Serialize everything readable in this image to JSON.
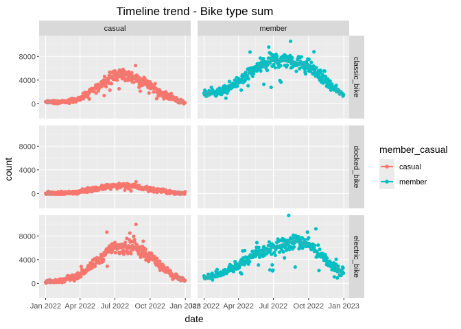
{
  "chart_data": {
    "type": "scatter",
    "title": "Timeline trend - Bike type sum",
    "xlabel": "date",
    "ylabel": "count",
    "facet_cols": [
      "casual",
      "member"
    ],
    "facet_rows": [
      "classic_bike",
      "docked_bike",
      "electric_bike"
    ],
    "x_ticks": [
      "Jan 2022",
      "Apr 2022",
      "Jul 2022",
      "Oct 2022",
      "Jan 2023"
    ],
    "x_range": [
      "2021-12-15",
      "2023-01-15"
    ],
    "y_ticks": [
      0,
      4000,
      8000
    ],
    "y_range": [
      -2500,
      11500
    ],
    "grid": true,
    "smooth_lines": true,
    "legend": {
      "title": "member_casual",
      "placement": "right",
      "entries": [
        {
          "label": "casual",
          "color": "#F8766D"
        },
        {
          "label": "member",
          "color": "#00BFC4"
        }
      ]
    },
    "panels": [
      {
        "col": "casual",
        "row": "classic_bike",
        "has_data": true,
        "trend": [
          {
            "x": "2022-01-01",
            "y": 300
          },
          {
            "x": "2022-02-15",
            "y": 250
          },
          {
            "x": "2022-04-01",
            "y": 800
          },
          {
            "x": "2022-05-15",
            "y": 2700
          },
          {
            "x": "2022-06-25",
            "y": 4700
          },
          {
            "x": "2022-07-20",
            "y": 5000
          },
          {
            "x": "2022-08-20",
            "y": 4400
          },
          {
            "x": "2022-09-25",
            "y": 3300
          },
          {
            "x": "2022-11-01",
            "y": 1900
          },
          {
            "x": "2022-12-01",
            "y": 800
          },
          {
            "x": "2022-12-31",
            "y": 100
          }
        ]
      },
      {
        "col": "member",
        "row": "classic_bike",
        "has_data": true,
        "trend": [
          {
            "x": "2022-01-01",
            "y": 1500
          },
          {
            "x": "2022-02-15",
            "y": 2100
          },
          {
            "x": "2022-04-01",
            "y": 3700
          },
          {
            "x": "2022-05-15",
            "y": 5900
          },
          {
            "x": "2022-06-25",
            "y": 7200
          },
          {
            "x": "2022-07-25",
            "y": 7300
          },
          {
            "x": "2022-08-25",
            "y": 7100
          },
          {
            "x": "2022-10-01",
            "y": 6300
          },
          {
            "x": "2022-11-01",
            "y": 4600
          },
          {
            "x": "2022-12-01",
            "y": 2800
          },
          {
            "x": "2022-12-31",
            "y": 1500
          }
        ]
      },
      {
        "col": "casual",
        "row": "docked_bike",
        "has_data": true,
        "trend": [
          {
            "x": "2022-01-01",
            "y": 50
          },
          {
            "x": "2022-02-15",
            "y": 50
          },
          {
            "x": "2022-04-01",
            "y": 300
          },
          {
            "x": "2022-05-15",
            "y": 800
          },
          {
            "x": "2022-06-25",
            "y": 1300
          },
          {
            "x": "2022-07-20",
            "y": 1400
          },
          {
            "x": "2022-08-20",
            "y": 1200
          },
          {
            "x": "2022-09-25",
            "y": 800
          },
          {
            "x": "2022-11-01",
            "y": 400
          },
          {
            "x": "2022-12-01",
            "y": 150
          },
          {
            "x": "2022-12-31",
            "y": 50
          }
        ]
      },
      {
        "col": "member",
        "row": "docked_bike",
        "has_data": false,
        "trend": []
      },
      {
        "col": "casual",
        "row": "electric_bike",
        "has_data": true,
        "trend": [
          {
            "x": "2022-01-01",
            "y": 300
          },
          {
            "x": "2022-02-15",
            "y": 500
          },
          {
            "x": "2022-04-01",
            "y": 1500
          },
          {
            "x": "2022-05-15",
            "y": 3700
          },
          {
            "x": "2022-06-25",
            "y": 5900
          },
          {
            "x": "2022-07-25",
            "y": 6500
          },
          {
            "x": "2022-08-25",
            "y": 6000
          },
          {
            "x": "2022-10-01",
            "y": 4600
          },
          {
            "x": "2022-11-01",
            "y": 2800
          },
          {
            "x": "2022-12-01",
            "y": 1300
          },
          {
            "x": "2022-12-31",
            "y": 400
          }
        ]
      },
      {
        "col": "member",
        "row": "electric_bike",
        "has_data": true,
        "trend": [
          {
            "x": "2022-01-01",
            "y": 800
          },
          {
            "x": "2022-02-15",
            "y": 1600
          },
          {
            "x": "2022-04-01",
            "y": 3200
          },
          {
            "x": "2022-05-15",
            "y": 4800
          },
          {
            "x": "2022-06-25",
            "y": 5900
          },
          {
            "x": "2022-07-25",
            "y": 6600
          },
          {
            "x": "2022-08-25",
            "y": 7200
          },
          {
            "x": "2022-10-01",
            "y": 6700
          },
          {
            "x": "2022-11-01",
            "y": 4800
          },
          {
            "x": "2022-12-01",
            "y": 3000
          },
          {
            "x": "2022-12-31",
            "y": 1700
          }
        ]
      }
    ]
  }
}
